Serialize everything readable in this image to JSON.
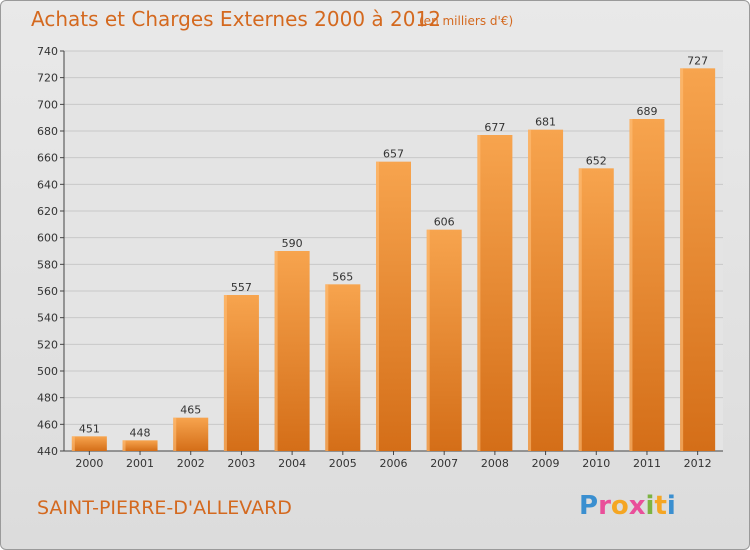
{
  "header": {
    "title": "Achats et Charges Externes 2000 à 2012",
    "subtitle": "(en milliers d'€)"
  },
  "footer": {
    "commune": "SAINT-PIERRE-D'ALLEVARD",
    "brand": "Proxiti"
  },
  "colors": {
    "bar_light": "#f7a44e",
    "bar_dark": "#d46e18",
    "accent": "#d4691f",
    "grid": "#c8c8c8"
  },
  "chart_data": {
    "type": "bar",
    "title": "Achats et Charges Externes 2000 à 2012",
    "subtitle": "(en milliers d'€)",
    "categories": [
      "2000",
      "2001",
      "2002",
      "2003",
      "2004",
      "2005",
      "2006",
      "2007",
      "2008",
      "2009",
      "2010",
      "2011",
      "2012"
    ],
    "values": [
      451,
      448,
      465,
      557,
      590,
      565,
      657,
      606,
      677,
      681,
      652,
      689,
      727
    ],
    "xlabel": "",
    "ylabel": "",
    "ylim": [
      440,
      740
    ],
    "yticks": [
      440,
      460,
      480,
      500,
      520,
      540,
      560,
      580,
      600,
      620,
      640,
      660,
      680,
      700,
      720,
      740
    ],
    "grid": true
  }
}
